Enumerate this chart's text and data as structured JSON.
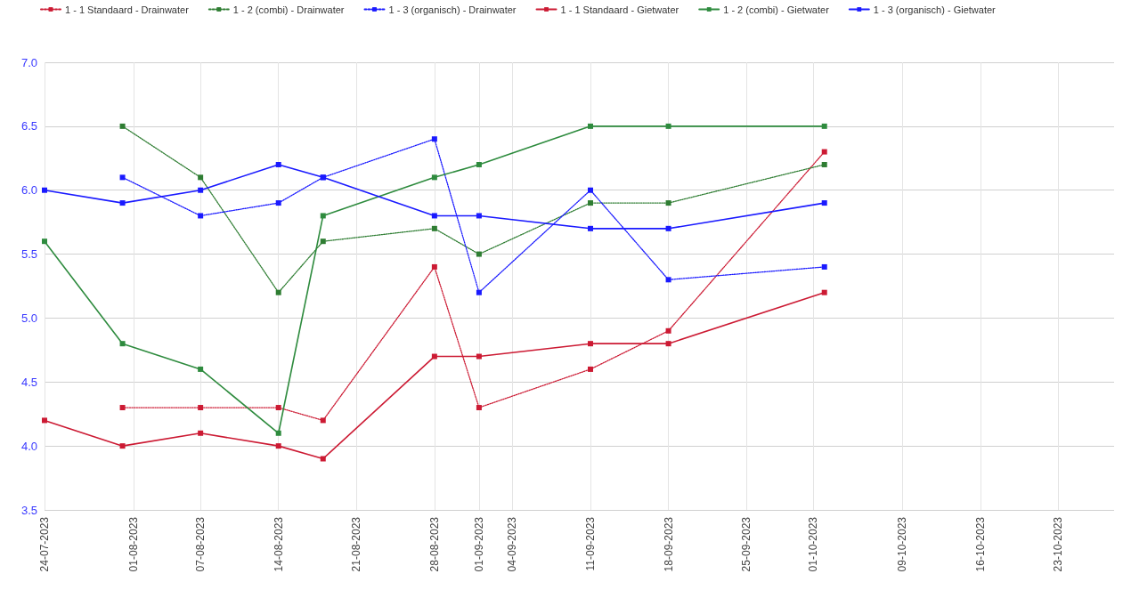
{
  "chart_data": {
    "type": "line",
    "x": [
      "2023-07-24",
      "2023-07-31",
      "2023-08-07",
      "2023-08-14",
      "2023-08-18",
      "2023-08-28",
      "2023-09-01",
      "2023-09-11",
      "2023-09-18",
      "2023-10-02"
    ],
    "series": [
      {
        "name": "1 - 1 Standaard - Drainwater",
        "color": "#cc1a33",
        "line_style": "dotted",
        "values": [
          null,
          4.3,
          4.3,
          4.3,
          4.2,
          5.4,
          4.3,
          4.6,
          4.9,
          6.3
        ]
      },
      {
        "name": "1 - 2 (combi) - Drainwater",
        "color": "#2e7d32",
        "line_style": "dotted",
        "values": [
          null,
          6.5,
          6.1,
          5.2,
          5.6,
          5.7,
          5.5,
          5.9,
          5.9,
          6.2
        ]
      },
      {
        "name": "1 - 3 (organisch) - Drainwater",
        "color": "#1a1aff",
        "line_style": "dotted",
        "values": [
          null,
          6.1,
          5.8,
          5.9,
          6.1,
          6.4,
          5.2,
          6.0,
          5.3,
          5.4
        ]
      },
      {
        "name": "1 - 1 Standaard - Gietwater",
        "color": "#cc1a33",
        "line_style": "solid",
        "values": [
          4.2,
          4.0,
          4.1,
          4.0,
          3.9,
          4.7,
          4.7,
          4.8,
          4.8,
          5.2
        ]
      },
      {
        "name": "1 - 2 (combi) - Gietwater",
        "color": "#2e8b3e",
        "line_style": "solid",
        "values": [
          5.6,
          4.8,
          4.6,
          4.1,
          5.8,
          6.1,
          6.2,
          6.5,
          6.5,
          6.5
        ]
      },
      {
        "name": "1 - 3 (organisch) - Gietwater",
        "color": "#1a1aff",
        "line_style": "solid",
        "values": [
          6.0,
          5.9,
          6.0,
          6.2,
          6.1,
          5.8,
          5.8,
          5.7,
          5.7,
          5.9
        ]
      }
    ],
    "xlim": [
      "2023-07-24",
      "2023-10-28"
    ],
    "xticks": [
      {
        "value": "2023-07-24",
        "label": "24-07-2023"
      },
      {
        "value": "2023-08-01",
        "label": "01-08-2023"
      },
      {
        "value": "2023-08-07",
        "label": "07-08-2023"
      },
      {
        "value": "2023-08-14",
        "label": "14-08-2023"
      },
      {
        "value": "2023-08-21",
        "label": "21-08-2023"
      },
      {
        "value": "2023-08-28",
        "label": "28-08-2023"
      },
      {
        "value": "2023-09-01",
        "label": "01-09-2023"
      },
      {
        "value": "2023-09-04",
        "label": "04-09-2023"
      },
      {
        "value": "2023-09-11",
        "label": "11-09-2023"
      },
      {
        "value": "2023-09-18",
        "label": "18-09-2023"
      },
      {
        "value": "2023-09-25",
        "label": "25-09-2023"
      },
      {
        "value": "2023-10-01",
        "label": "01-10-2023"
      },
      {
        "value": "2023-10-09",
        "label": "09-10-2023"
      },
      {
        "value": "2023-10-16",
        "label": "16-10-2023"
      },
      {
        "value": "2023-10-23",
        "label": "23-10-2023"
      }
    ],
    "ylim": [
      3.5,
      7.0
    ],
    "yticks": [
      {
        "value": 3.5,
        "label": "3.5"
      },
      {
        "value": 4.0,
        "label": "4.0"
      },
      {
        "value": 4.5,
        "label": "4.5"
      },
      {
        "value": 5.0,
        "label": "5.0"
      },
      {
        "value": 5.5,
        "label": "5.5"
      },
      {
        "value": 6.0,
        "label": "6.0"
      },
      {
        "value": 6.5,
        "label": "6.5"
      },
      {
        "value": 7.0,
        "label": "7.0"
      }
    ],
    "grid": true,
    "legend": "top left",
    "marker": "square"
  }
}
